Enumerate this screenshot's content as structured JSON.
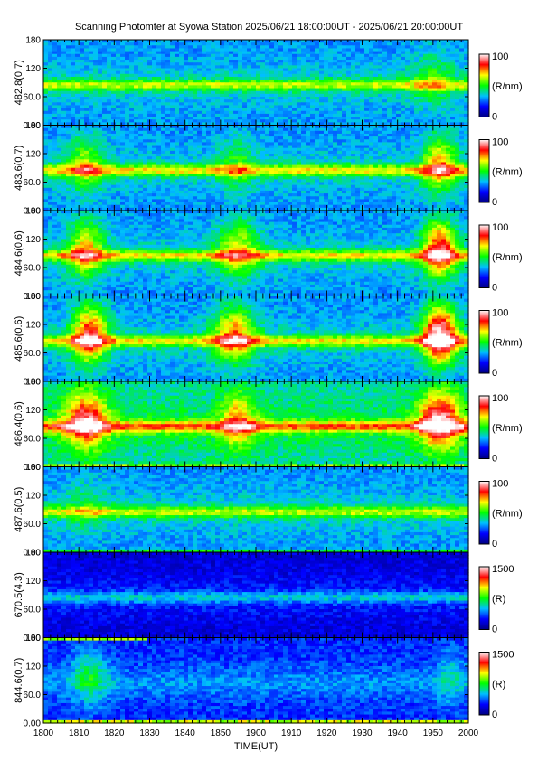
{
  "chart_data": {
    "type": "heatmap",
    "title": "Scanning Photomter at Syowa Station 2025/06/21 18:00:00UT - 2025/06/21 20:00:00UT",
    "xlabel": "TIME(UT)",
    "x_ticks": [
      "1800",
      "1810",
      "1820",
      "1830",
      "1840",
      "1850",
      "1900",
      "1910",
      "1920",
      "1930",
      "1940",
      "1950",
      "2000"
    ],
    "y_ticks": [
      "0.00",
      "60.0",
      "120",
      "180"
    ],
    "ylim": [
      0,
      180
    ],
    "colormap": [
      "#000080",
      "#0000ff",
      "#00bfff",
      "#00ff00",
      "#ffff00",
      "#ff0000",
      "#ffffff"
    ],
    "panels": [
      {
        "ylabel": "482.8(0.7)",
        "colorbar_min": "0",
        "colorbar_max": "100",
        "colorbar_unit": "(R/nm)",
        "band_level": 0.55,
        "background": 0.3,
        "enhancements": [
          {
            "t": 1950,
            "w": 6,
            "amp": 0.15
          }
        ],
        "bottom_band": 0
      },
      {
        "ylabel": "483.6(0.7)",
        "colorbar_min": "0",
        "colorbar_max": "100",
        "colorbar_unit": "(R/nm)",
        "band_level": 0.6,
        "background": 0.3,
        "enhancements": [
          {
            "t": 1812,
            "w": 5,
            "amp": 0.25
          },
          {
            "t": 1855,
            "w": 5,
            "amp": 0.15
          },
          {
            "t": 1952,
            "w": 5,
            "amp": 0.35
          }
        ],
        "bottom_band": 0
      },
      {
        "ylabel": "484.6(0.6)",
        "colorbar_min": "0",
        "colorbar_max": "100",
        "colorbar_unit": "(R/nm)",
        "band_level": 0.6,
        "background": 0.3,
        "enhancements": [
          {
            "t": 1812,
            "w": 5,
            "amp": 0.35
          },
          {
            "t": 1855,
            "w": 6,
            "amp": 0.3
          },
          {
            "t": 1952,
            "w": 5,
            "amp": 0.5
          }
        ],
        "bottom_band": 0
      },
      {
        "ylabel": "485.6(0.6)",
        "colorbar_min": "0",
        "colorbar_max": "100",
        "colorbar_unit": "(R/nm)",
        "band_level": 0.6,
        "background": 0.3,
        "enhancements": [
          {
            "t": 1813,
            "w": 5,
            "amp": 0.5
          },
          {
            "t": 1854,
            "w": 6,
            "amp": 0.4
          },
          {
            "t": 1952,
            "w": 5,
            "amp": 0.65
          }
        ],
        "bottom_band": 0
      },
      {
        "ylabel": "486.4(0.6)",
        "colorbar_min": "0",
        "colorbar_max": "100",
        "colorbar_unit": "(R/nm)",
        "band_level": 0.72,
        "background": 0.4,
        "enhancements": [
          {
            "t": 1812,
            "w": 6,
            "amp": 0.45
          },
          {
            "t": 1855,
            "w": 5,
            "amp": 0.3
          },
          {
            "t": 1952,
            "w": 6,
            "amp": 0.5
          }
        ],
        "bottom_band": 0.5
      },
      {
        "ylabel": "487.6(0.5)",
        "colorbar_min": "0",
        "colorbar_max": "100",
        "colorbar_unit": "(R/nm)",
        "band_level": 0.55,
        "background": 0.3,
        "enhancements": [
          {
            "t": 1812,
            "w": 6,
            "amp": 0.1
          }
        ],
        "bottom_band": 0.4
      },
      {
        "ylabel": "670.5(4.3)",
        "colorbar_min": "0",
        "colorbar_max": "1500",
        "colorbar_unit": "(R)",
        "band_level": 0.28,
        "background": 0.12,
        "enhancements": [],
        "bottom_band": 0
      },
      {
        "ylabel": "844.6(0.7)",
        "colorbar_min": "0",
        "colorbar_max": "1500",
        "colorbar_unit": "(R)",
        "band_level": 0.22,
        "background": 0.2,
        "enhancements": [
          {
            "t": 1813,
            "w": 5,
            "amp": 0.2
          },
          {
            "t": 1955,
            "w": 4,
            "amp": 0.12
          }
        ],
        "bottom_band": 0.55,
        "top_band": 0.55
      }
    ]
  }
}
